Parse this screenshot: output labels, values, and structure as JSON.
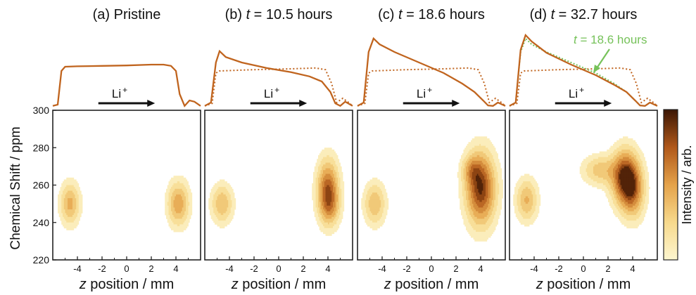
{
  "colors": {
    "profile": "#c0641e",
    "overlay_green": "#76c25a",
    "contour_line": "#cfcfa6",
    "arrow": "#111111",
    "cmap_low": "#fdf6cf",
    "cmap_high": "#3b1604"
  },
  "axes": {
    "ylabel": "Chemical Shift / ppm",
    "xlabel_var": "z",
    "xlabel_rest": " position / mm",
    "colorbar_label": "Intensity / arb.",
    "y_ticks": [
      "300",
      "280",
      "260",
      "240",
      "220"
    ],
    "x_ticks": [
      "-4",
      "-2",
      "0",
      "2",
      "4"
    ],
    "arrow_label": "Li",
    "arrow_sup": "+",
    "annotation_var": "t",
    "annotation_rest": " = 18.6 hours"
  },
  "chart_data": {
    "type": "heatmap",
    "description_free": true,
    "xlim": [
      -6,
      6
    ],
    "ylim": [
      220,
      300
    ],
    "panels": [
      {
        "title": "(a) Pristine",
        "title_var": "",
        "title_rest": "",
        "blobs": [
          {
            "z": -4.6,
            "ppm": 250,
            "sz": 0.5,
            "sp": 7,
            "amp": 0.45
          },
          {
            "z": 4.2,
            "ppm": 250,
            "sz": 0.55,
            "sp": 7.5,
            "amp": 0.5
          }
        ],
        "profile_solid": [
          [
            -6,
            0.02
          ],
          [
            -5.6,
            0.05
          ],
          [
            -5.3,
            0.85
          ],
          [
            -5,
            0.95
          ],
          [
            -4,
            0.96
          ],
          [
            -2,
            0.97
          ],
          [
            0,
            0.98
          ],
          [
            2,
            1.0
          ],
          [
            3,
            1.0
          ],
          [
            3.6,
            0.97
          ],
          [
            4,
            0.85
          ],
          [
            4.3,
            0.3
          ],
          [
            4.7,
            0.02
          ],
          [
            5.1,
            0.15
          ],
          [
            5.5,
            0.12
          ],
          [
            6,
            0.02
          ]
        ],
        "profile_dotted": []
      },
      {
        "title": "(b) ",
        "title_var": "t",
        "title_rest": " = 10.5 hours",
        "blobs": [
          {
            "z": -4.6,
            "ppm": 250,
            "sz": 0.55,
            "sp": 6.5,
            "amp": 0.4
          },
          {
            "z": 4.0,
            "ppm": 257,
            "sz": 0.55,
            "sp": 10,
            "amp": 0.85
          },
          {
            "z": 4.2,
            "ppm": 248,
            "sz": 0.5,
            "sp": 6,
            "amp": 0.25
          }
        ],
        "profile_solid": [
          [
            -6,
            0.02
          ],
          [
            -5.5,
            0.1
          ],
          [
            -5.1,
            1.05
          ],
          [
            -4.8,
            1.32
          ],
          [
            -4.3,
            1.18
          ],
          [
            -3,
            1.05
          ],
          [
            -1,
            0.92
          ],
          [
            1,
            0.82
          ],
          [
            2.5,
            0.72
          ],
          [
            3.5,
            0.6
          ],
          [
            4.2,
            0.35
          ],
          [
            4.6,
            0.08
          ],
          [
            5.0,
            0.02
          ],
          [
            5.4,
            0.12
          ],
          [
            6,
            0.02
          ]
        ],
        "profile_dotted": [
          [
            -6,
            0.02
          ],
          [
            -5.4,
            0.08
          ],
          [
            -5.1,
            0.8
          ],
          [
            -4.8,
            0.85
          ],
          [
            -2,
            0.88
          ],
          [
            1,
            0.9
          ],
          [
            3,
            0.92
          ],
          [
            3.8,
            0.88
          ],
          [
            4.3,
            0.55
          ],
          [
            4.7,
            0.1
          ],
          [
            5.2,
            0.2
          ],
          [
            5.6,
            0.12
          ],
          [
            6,
            0.02
          ]
        ]
      },
      {
        "title": "(c) ",
        "title_var": "t",
        "title_rest": " = 18.6 hours",
        "blobs": [
          {
            "z": -4.6,
            "ppm": 250,
            "sz": 0.55,
            "sp": 7,
            "amp": 0.4
          },
          {
            "z": 4.0,
            "ppm": 258,
            "sz": 0.75,
            "sp": 12,
            "amp": 1.0
          },
          {
            "z": 3.3,
            "ppm": 268,
            "sz": 0.5,
            "sp": 5,
            "amp": 0.35
          }
        ],
        "profile_solid": [
          [
            -6,
            0.02
          ],
          [
            -5.5,
            0.1
          ],
          [
            -5.1,
            1.3
          ],
          [
            -4.7,
            1.62
          ],
          [
            -4.2,
            1.48
          ],
          [
            -3,
            1.3
          ],
          [
            -1,
            1.05
          ],
          [
            1,
            0.8
          ],
          [
            2.5,
            0.55
          ],
          [
            3.5,
            0.35
          ],
          [
            4.2,
            0.15
          ],
          [
            4.6,
            0.03
          ],
          [
            5.0,
            0.02
          ],
          [
            5.4,
            0.1
          ],
          [
            6,
            0.02
          ]
        ],
        "profile_dotted": [
          [
            -6,
            0.02
          ],
          [
            -5.4,
            0.08
          ],
          [
            -5.1,
            0.8
          ],
          [
            -4.8,
            0.85
          ],
          [
            -2,
            0.88
          ],
          [
            1,
            0.9
          ],
          [
            3,
            0.92
          ],
          [
            3.8,
            0.88
          ],
          [
            4.3,
            0.55
          ],
          [
            4.7,
            0.1
          ],
          [
            5.2,
            0.2
          ],
          [
            5.6,
            0.12
          ],
          [
            6,
            0.02
          ]
        ]
      },
      {
        "title": "(d) ",
        "title_var": "t",
        "title_rest": " = 32.7 hours",
        "blobs": [
          {
            "z": -4.6,
            "ppm": 252,
            "sz": 0.55,
            "sp": 7,
            "amp": 0.42
          },
          {
            "z": 3.4,
            "ppm": 264,
            "sz": 0.7,
            "sp": 9,
            "amp": 1.05
          },
          {
            "z": 4.0,
            "ppm": 256,
            "sz": 0.6,
            "sp": 9,
            "amp": 0.55
          },
          {
            "z": 1.4,
            "ppm": 268,
            "sz": 0.9,
            "sp": 5,
            "amp": 0.35
          }
        ],
        "profile_solid": [
          [
            -6,
            0.02
          ],
          [
            -5.5,
            0.1
          ],
          [
            -5.1,
            1.35
          ],
          [
            -4.7,
            1.7
          ],
          [
            -4.2,
            1.55
          ],
          [
            -3,
            1.28
          ],
          [
            -1,
            1.0
          ],
          [
            1,
            0.75
          ],
          [
            2.5,
            0.52
          ],
          [
            3.5,
            0.35
          ],
          [
            4.2,
            0.15
          ],
          [
            4.6,
            0.03
          ],
          [
            5.0,
            0.02
          ],
          [
            5.4,
            0.1
          ],
          [
            6,
            0.02
          ]
        ],
        "profile_dotted": [
          [
            -6,
            0.02
          ],
          [
            -5.4,
            0.08
          ],
          [
            -5.1,
            0.8
          ],
          [
            -4.8,
            0.85
          ],
          [
            -2,
            0.88
          ],
          [
            1,
            0.9
          ],
          [
            3,
            0.92
          ],
          [
            3.8,
            0.88
          ],
          [
            4.3,
            0.55
          ],
          [
            4.7,
            0.1
          ],
          [
            5.2,
            0.2
          ],
          [
            5.6,
            0.12
          ],
          [
            6,
            0.02
          ]
        ],
        "profile_green": [
          [
            -6,
            0.02
          ],
          [
            -5.5,
            0.1
          ],
          [
            -5.1,
            1.3
          ],
          [
            -4.7,
            1.62
          ],
          [
            -4.2,
            1.48
          ],
          [
            -3,
            1.3
          ],
          [
            -1,
            1.05
          ],
          [
            1,
            0.8
          ],
          [
            2.5,
            0.55
          ],
          [
            3.5,
            0.35
          ],
          [
            4.2,
            0.15
          ],
          [
            4.6,
            0.03
          ],
          [
            5.0,
            0.02
          ],
          [
            5.4,
            0.1
          ],
          [
            6,
            0.02
          ]
        ]
      }
    ]
  }
}
